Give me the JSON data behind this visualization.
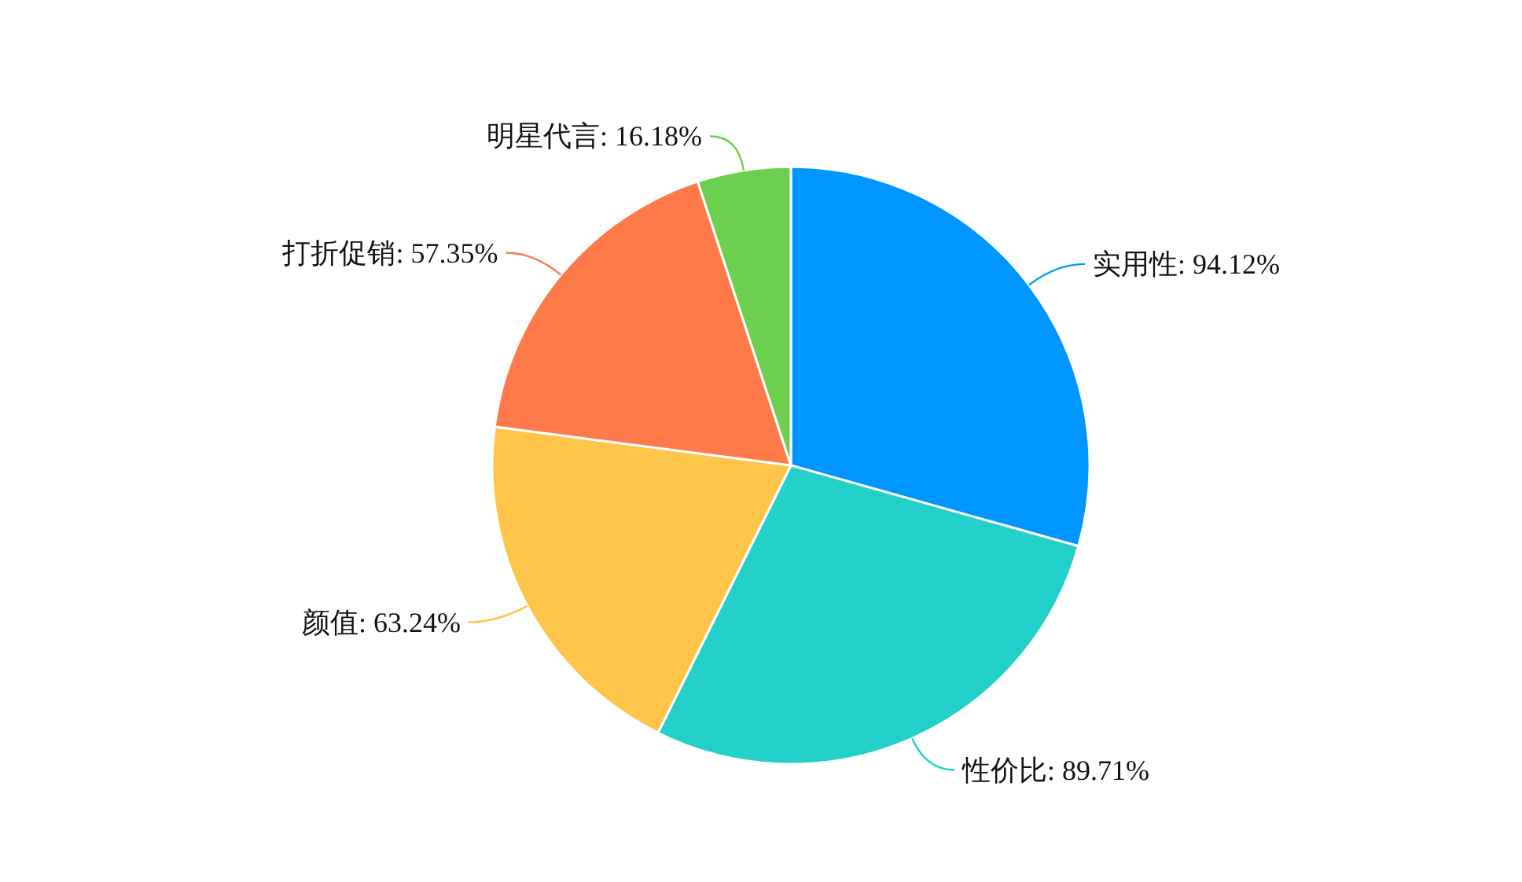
{
  "chart_data": {
    "type": "pie",
    "categories": [
      "实用性",
      "性价比",
      "颜值",
      "打折促销",
      "明星代言"
    ],
    "values": [
      94.12,
      89.71,
      63.24,
      57.35,
      16.18
    ],
    "value_labels": [
      "94.12%",
      "89.71%",
      "63.24%",
      "57.35%",
      "16.18%"
    ],
    "colors": [
      "#0096ff",
      "#22d0c9",
      "#ffc44a",
      "#ff7a4a",
      "#6cd04e"
    ],
    "legend": false
  }
}
